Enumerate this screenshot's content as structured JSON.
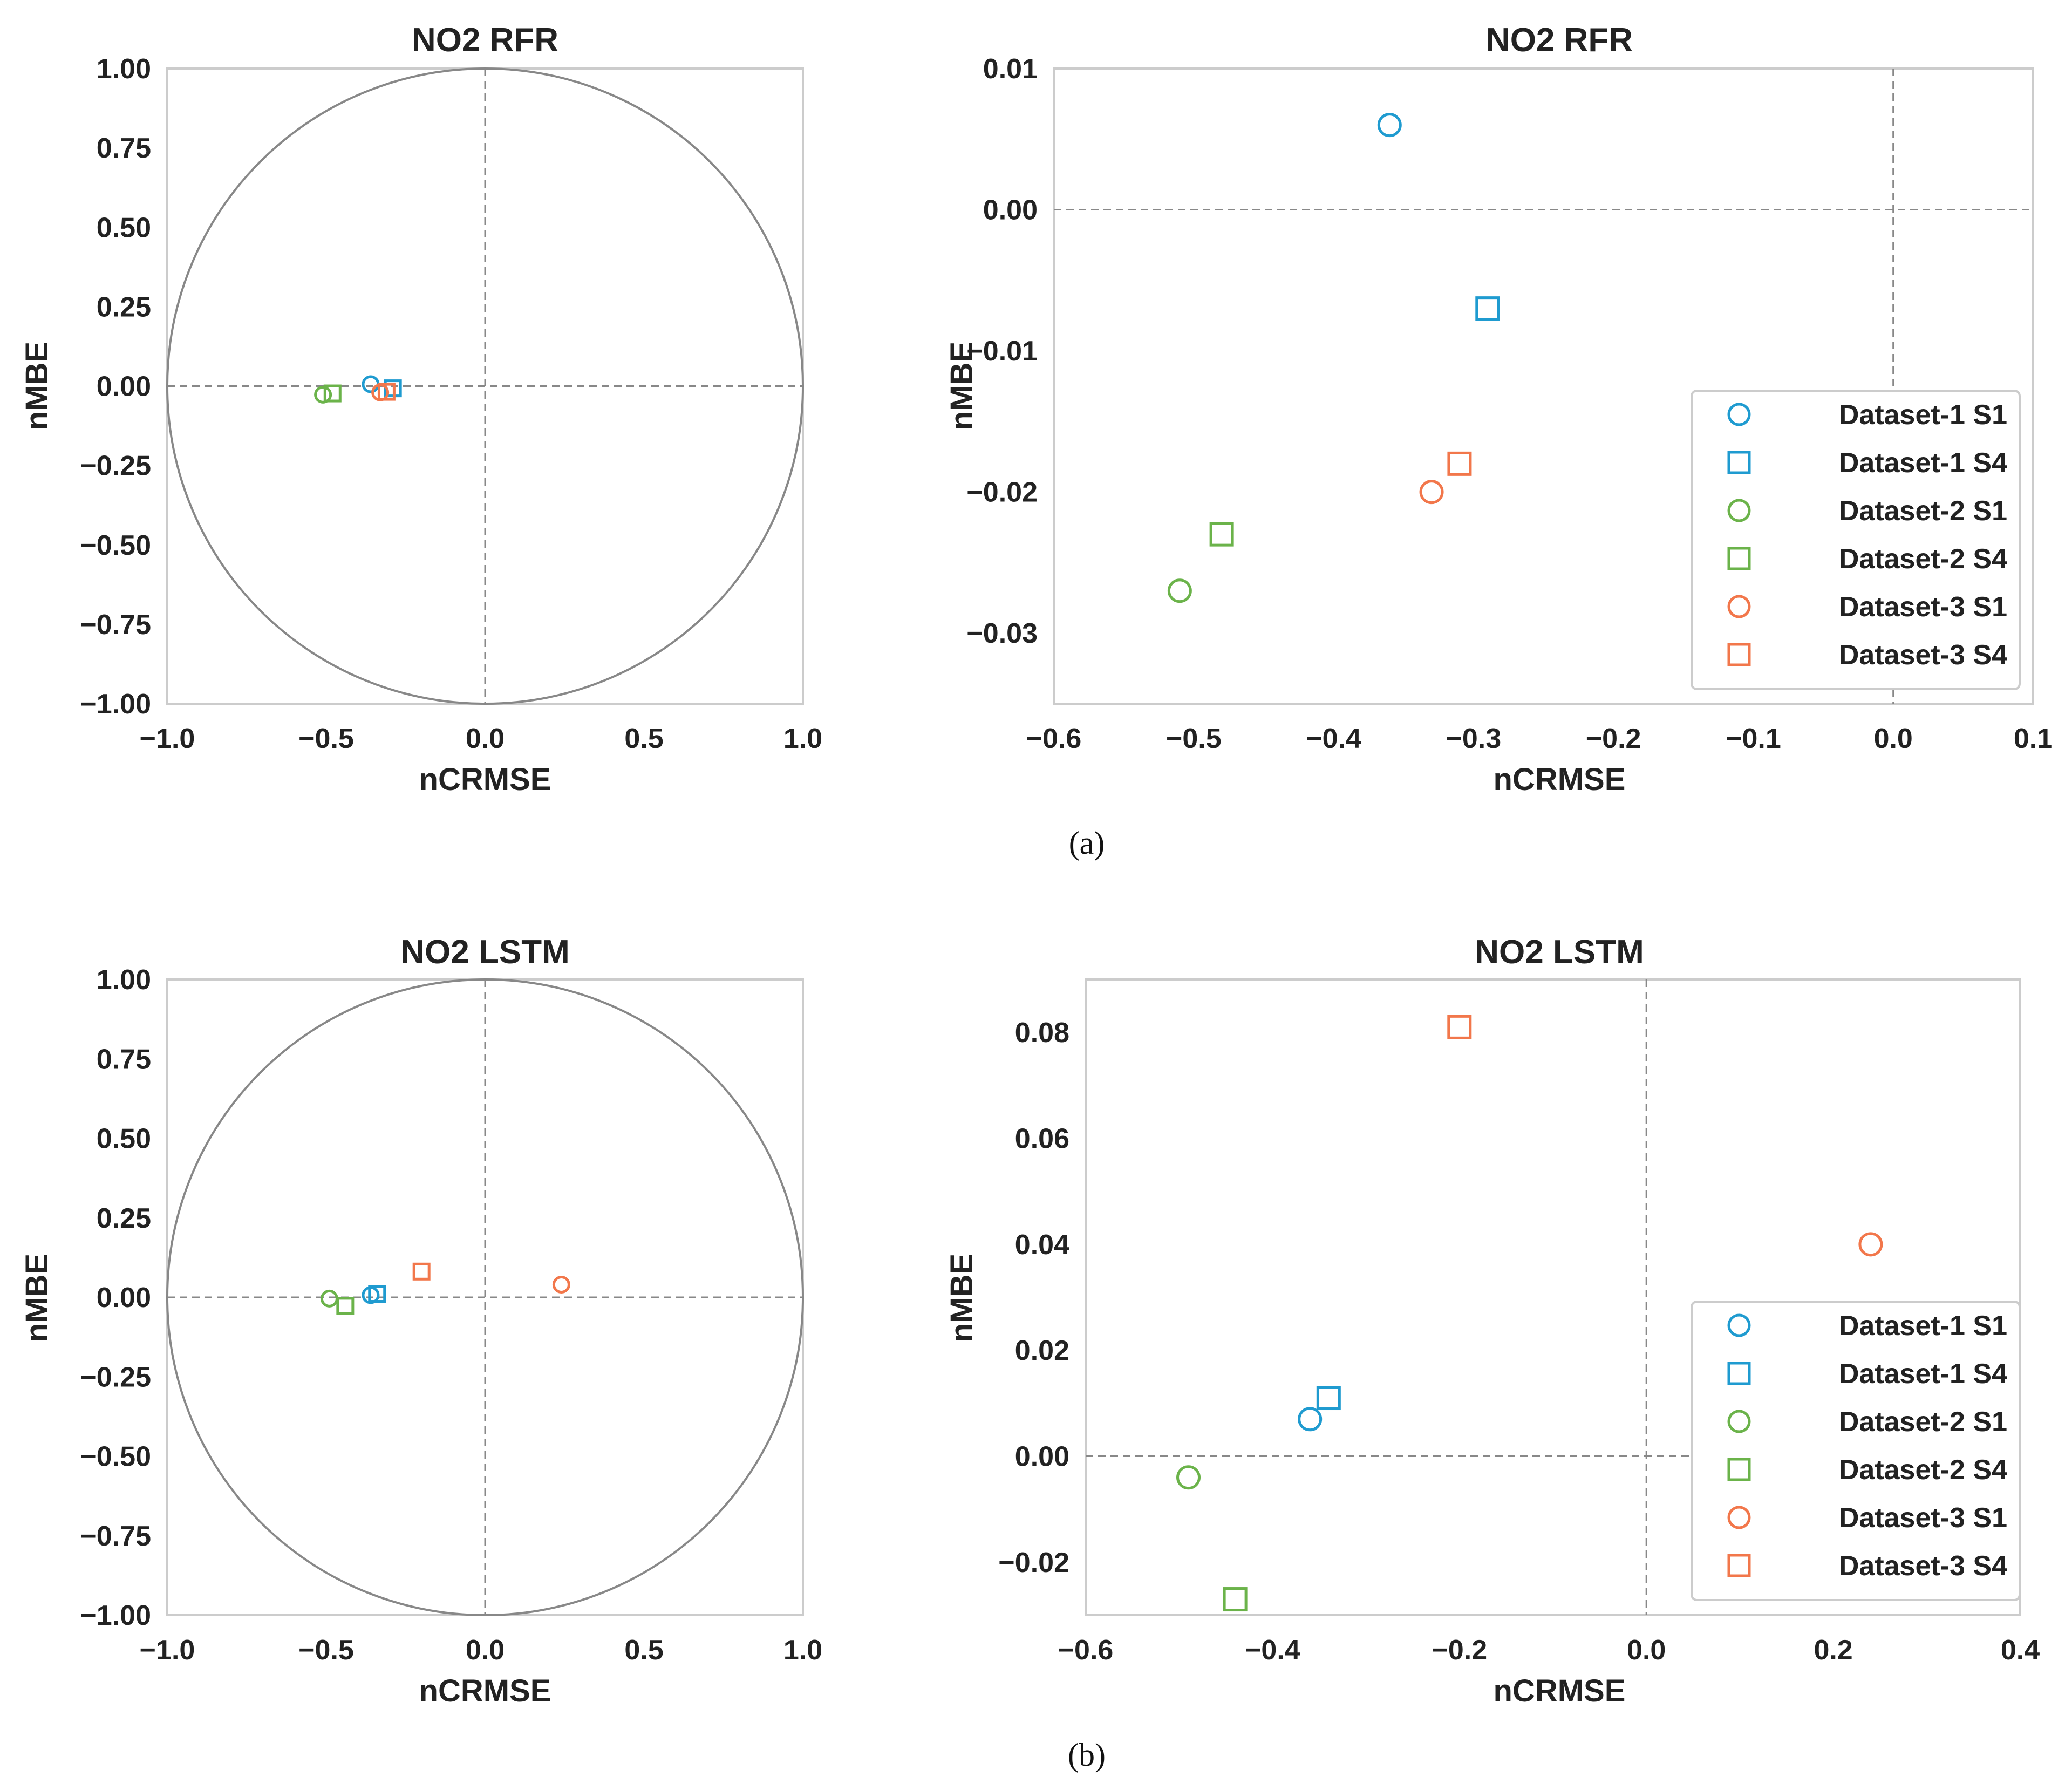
{
  "figure": {
    "panel_a_caption": "(a)",
    "panel_b_caption": "(b)"
  },
  "legend": {
    "entries": [
      {
        "label": "Dataset-1 S1",
        "color": "#1f9bd0",
        "marker": "circle"
      },
      {
        "label": "Dataset-1 S4",
        "color": "#1f9bd0",
        "marker": "square"
      },
      {
        "label": "Dataset-2 S1",
        "color": "#6bb34a",
        "marker": "circle"
      },
      {
        "label": "Dataset-2 S4",
        "color": "#6bb34a",
        "marker": "square"
      },
      {
        "label": "Dataset-3 S1",
        "color": "#f2774b",
        "marker": "circle"
      },
      {
        "label": "Dataset-3 S4",
        "color": "#f2774b",
        "marker": "square"
      }
    ]
  },
  "chart_data": [
    {
      "id": "rfr-circle",
      "type": "scatter",
      "title": "NO2 RFR",
      "xlabel": "nCRMSE",
      "ylabel": "nMBE",
      "xlim": [
        -1.0,
        1.0
      ],
      "ylim": [
        -1.0,
        1.0
      ],
      "xticks": [
        -1.0,
        -0.5,
        0.0,
        0.5,
        1.0
      ],
      "xtick_labels": [
        "−1.0",
        "−0.5",
        "0.0",
        "0.5",
        "1.0"
      ],
      "yticks": [
        1.0,
        0.75,
        0.5,
        0.25,
        0.0,
        -0.25,
        -0.5,
        -0.75,
        -1.0
      ],
      "ytick_labels": [
        "1.00",
        "0.75",
        "0.50",
        "0.25",
        "0.00",
        "−0.25",
        "−0.50",
        "−0.75",
        "−1.00"
      ],
      "unit_circle": true,
      "legend": false,
      "series": [
        {
          "name": "Dataset-1 S1",
          "x": -0.36,
          "y": 0.006
        },
        {
          "name": "Dataset-1 S4",
          "x": -0.29,
          "y": -0.007
        },
        {
          "name": "Dataset-2 S1",
          "x": -0.51,
          "y": -0.027
        },
        {
          "name": "Dataset-2 S4",
          "x": -0.48,
          "y": -0.023
        },
        {
          "name": "Dataset-3 S1",
          "x": -0.33,
          "y": -0.02
        },
        {
          "name": "Dataset-3 S4",
          "x": -0.31,
          "y": -0.018
        }
      ]
    },
    {
      "id": "rfr-zoom",
      "type": "scatter",
      "title": "NO2 RFR",
      "xlabel": "nCRMSE",
      "ylabel": "nMBE",
      "xlim": [
        -0.6,
        0.1
      ],
      "ylim": [
        -0.035,
        0.01
      ],
      "xticks": [
        -0.6,
        -0.5,
        -0.4,
        -0.3,
        -0.2,
        -0.1,
        0.0,
        0.1
      ],
      "xtick_labels": [
        "−0.6",
        "−0.5",
        "−0.4",
        "−0.3",
        "−0.2",
        "−0.1",
        "0.0",
        "0.1"
      ],
      "yticks": [
        0.01,
        0.0,
        -0.01,
        -0.02,
        -0.03
      ],
      "ytick_labels": [
        "0.01",
        "0.00",
        "−0.01",
        "−0.02",
        "−0.03"
      ],
      "unit_circle": false,
      "legend": true,
      "series": [
        {
          "name": "Dataset-1 S1",
          "x": -0.36,
          "y": 0.006
        },
        {
          "name": "Dataset-1 S4",
          "x": -0.29,
          "y": -0.007
        },
        {
          "name": "Dataset-2 S1",
          "x": -0.51,
          "y": -0.027
        },
        {
          "name": "Dataset-2 S4",
          "x": -0.48,
          "y": -0.023
        },
        {
          "name": "Dataset-3 S1",
          "x": -0.33,
          "y": -0.02
        },
        {
          "name": "Dataset-3 S4",
          "x": -0.31,
          "y": -0.018
        }
      ]
    },
    {
      "id": "lstm-circle",
      "type": "scatter",
      "title": "NO2 LSTM",
      "xlabel": "nCRMSE",
      "ylabel": "nMBE",
      "xlim": [
        -1.0,
        1.0
      ],
      "ylim": [
        -1.0,
        1.0
      ],
      "xticks": [
        -1.0,
        -0.5,
        0.0,
        0.5,
        1.0
      ],
      "xtick_labels": [
        "−1.0",
        "−0.5",
        "0.0",
        "0.5",
        "1.0"
      ],
      "yticks": [
        1.0,
        0.75,
        0.5,
        0.25,
        0.0,
        -0.25,
        -0.5,
        -0.75,
        -1.0
      ],
      "ytick_labels": [
        "1.00",
        "0.75",
        "0.50",
        "0.25",
        "0.00",
        "−0.25",
        "−0.50",
        "−0.75",
        "−1.00"
      ],
      "unit_circle": true,
      "legend": false,
      "series": [
        {
          "name": "Dataset-1 S1",
          "x": -0.36,
          "y": 0.007
        },
        {
          "name": "Dataset-1 S4",
          "x": -0.34,
          "y": 0.011
        },
        {
          "name": "Dataset-2 S1",
          "x": -0.49,
          "y": -0.004
        },
        {
          "name": "Dataset-2 S4",
          "x": -0.44,
          "y": -0.027
        },
        {
          "name": "Dataset-3 S1",
          "x": 0.24,
          "y": 0.04
        },
        {
          "name": "Dataset-3 S4",
          "x": -0.2,
          "y": 0.081
        }
      ]
    },
    {
      "id": "lstm-zoom",
      "type": "scatter",
      "title": "NO2 LSTM",
      "xlabel": "nCRMSE",
      "ylabel": "nMBE",
      "xlim": [
        -0.6,
        0.4
      ],
      "ylim": [
        -0.03,
        0.09
      ],
      "xticks": [
        -0.6,
        -0.4,
        -0.2,
        0.0,
        0.2,
        0.4
      ],
      "xtick_labels": [
        "−0.6",
        "−0.4",
        "−0.2",
        "0.0",
        "0.2",
        "0.4"
      ],
      "yticks": [
        0.08,
        0.06,
        0.04,
        0.02,
        0.0,
        -0.02
      ],
      "ytick_labels": [
        "0.08",
        "0.06",
        "0.04",
        "0.02",
        "0.00",
        "−0.02"
      ],
      "unit_circle": false,
      "legend": true,
      "series": [
        {
          "name": "Dataset-1 S1",
          "x": -0.36,
          "y": 0.007
        },
        {
          "name": "Dataset-1 S4",
          "x": -0.34,
          "y": 0.011
        },
        {
          "name": "Dataset-2 S1",
          "x": -0.49,
          "y": -0.004
        },
        {
          "name": "Dataset-2 S4",
          "x": -0.44,
          "y": -0.027
        },
        {
          "name": "Dataset-3 S1",
          "x": 0.24,
          "y": 0.04
        },
        {
          "name": "Dataset-3 S4",
          "x": -0.2,
          "y": 0.081
        }
      ]
    }
  ]
}
